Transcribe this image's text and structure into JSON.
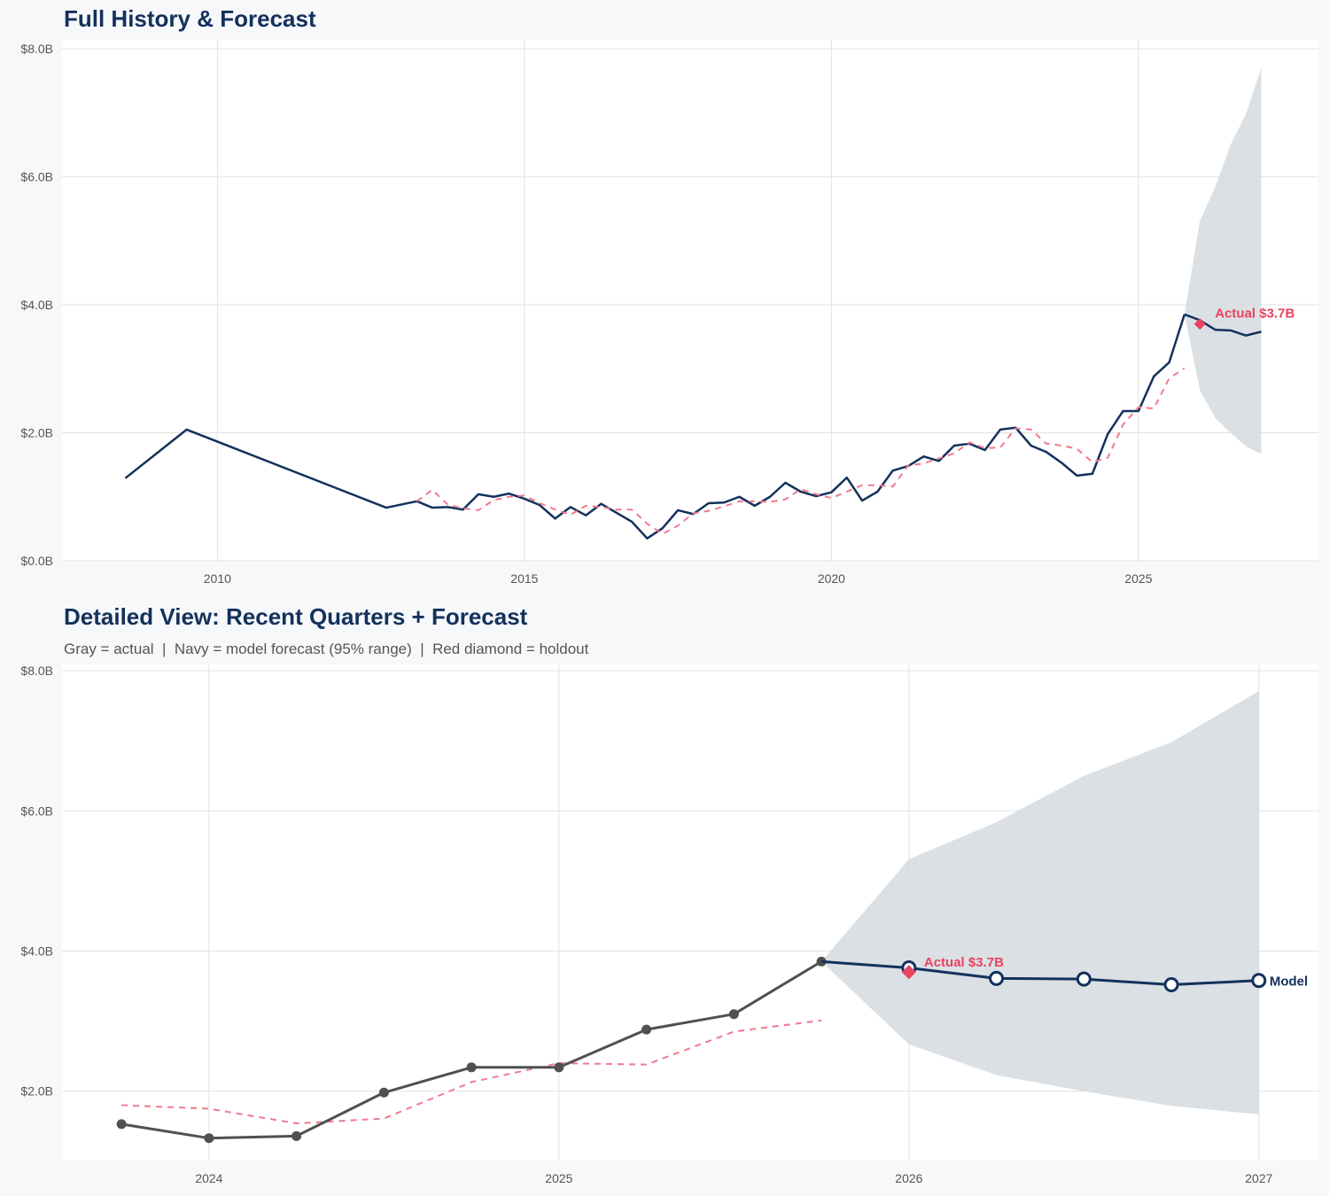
{
  "colors": {
    "navy": "#13315c",
    "actual_gray": "#505050",
    "fitted_red": "#f07a8e",
    "holdout_red": "#e8435f",
    "band": "#d5dae1",
    "grid": "#e2e2e2"
  },
  "chart_data": [
    {
      "type": "line",
      "title": "Full History & Forecast",
      "xlim": [
        2007.47,
        2027.93
      ],
      "ylim": [
        0,
        8.14
      ],
      "xticks": [
        2010,
        2015,
        2020,
        2025
      ],
      "xtick_labels": [
        "2010",
        "2015",
        "2020",
        "2025"
      ],
      "yticks": [
        0,
        2,
        4,
        6,
        8
      ],
      "ytick_labels": [
        "$0.0B",
        "$2.0B",
        "$4.0B",
        "$6.0B",
        "$8.0B"
      ],
      "grid": true,
      "series": [
        {
          "role": "actual",
          "style": "solid-navy",
          "x": [
            2008.5,
            2009.5,
            2012.75,
            2013.25,
            2013.5,
            2013.75,
            2014.0,
            2014.25,
            2014.5,
            2014.75,
            2015.0,
            2015.25,
            2015.5,
            2015.75,
            2016.0,
            2016.25,
            2016.5,
            2016.75,
            2017.0,
            2017.25,
            2017.5,
            2017.75,
            2018.0,
            2018.25,
            2018.5,
            2018.75,
            2019.0,
            2019.25,
            2019.5,
            2019.75,
            2020.0,
            2020.25,
            2020.5,
            2020.75,
            2021.0,
            2021.25,
            2021.5,
            2021.75,
            2022.0,
            2022.25,
            2022.5,
            2022.75,
            2023.0,
            2023.25,
            2023.5,
            2023.75,
            2024.0,
            2024.25,
            2024.5,
            2024.75,
            2025.0,
            2025.25,
            2025.5,
            2025.75
          ],
          "y": [
            1.29,
            2.05,
            0.83,
            0.93,
            0.83,
            0.84,
            0.8,
            1.04,
            1.0,
            1.05,
            0.97,
            0.87,
            0.66,
            0.84,
            0.71,
            0.89,
            0.75,
            0.61,
            0.35,
            0.51,
            0.79,
            0.73,
            0.9,
            0.91,
            1.0,
            0.86,
            1.0,
            1.22,
            1.08,
            1.01,
            1.07,
            1.3,
            0.94,
            1.08,
            1.41,
            1.48,
            1.63,
            1.56,
            1.8,
            1.83,
            1.73,
            2.05,
            2.08,
            1.8,
            1.7,
            1.53,
            1.33,
            1.36,
            1.98,
            2.34,
            2.34,
            2.88,
            3.1,
            3.85
          ]
        },
        {
          "role": "fitted",
          "style": "dashed-red",
          "x": [
            2013.25,
            2013.5,
            2013.75,
            2014.0,
            2014.25,
            2014.5,
            2014.75,
            2015.0,
            2015.25,
            2015.5,
            2015.75,
            2016.0,
            2016.25,
            2016.5,
            2016.75,
            2017.0,
            2017.25,
            2017.5,
            2017.75,
            2018.0,
            2018.25,
            2018.5,
            2018.75,
            2019.0,
            2019.25,
            2019.5,
            2019.75,
            2020.0,
            2020.25,
            2020.5,
            2020.75,
            2021.0,
            2021.25,
            2021.5,
            2021.75,
            2022.0,
            2022.25,
            2022.5,
            2022.75,
            2023.0,
            2023.25,
            2023.5,
            2023.75,
            2024.0,
            2024.25,
            2024.5,
            2024.75,
            2025.0,
            2025.25,
            2025.5,
            2025.75
          ],
          "y": [
            0.93,
            1.11,
            0.88,
            0.82,
            0.79,
            0.95,
            1.0,
            1.02,
            0.9,
            0.8,
            0.72,
            0.86,
            0.84,
            0.8,
            0.8,
            0.58,
            0.42,
            0.55,
            0.74,
            0.78,
            0.85,
            0.93,
            0.93,
            0.92,
            0.96,
            1.12,
            1.04,
            0.98,
            1.08,
            1.18,
            1.18,
            1.16,
            1.49,
            1.52,
            1.6,
            1.68,
            1.85,
            1.76,
            1.77,
            2.07,
            2.05,
            1.83,
            1.8,
            1.75,
            1.54,
            1.61,
            2.13,
            2.4,
            2.38,
            2.85,
            3.01
          ]
        },
        {
          "role": "forecast",
          "style": "solid-navy",
          "x": [
            2025.75,
            2026.0,
            2026.25,
            2026.5,
            2026.75,
            2027.0
          ],
          "y": [
            3.85,
            3.76,
            3.61,
            3.6,
            3.52,
            3.58
          ],
          "upper": [
            3.85,
            5.31,
            5.84,
            6.5,
            6.98,
            7.71
          ],
          "lower": [
            3.85,
            2.67,
            2.23,
            2.0,
            1.79,
            1.67
          ]
        }
      ],
      "holdout": {
        "x": 2026.0,
        "y": 3.7,
        "label": "Actual $3.7B"
      }
    },
    {
      "type": "line",
      "title": "Detailed View: Recent Quarters + Forecast",
      "subtitle": "Gray = actual  |  Navy = model forecast (95% range)  |  Red diamond = holdout",
      "xlim": [
        2023.58,
        2027.17
      ],
      "ylim": [
        1.01,
        8.09
      ],
      "xticks": [
        2024,
        2025,
        2026,
        2027
      ],
      "xtick_labels": [
        "2024",
        "2025",
        "2026",
        "2027"
      ],
      "yticks": [
        2,
        4,
        6,
        8
      ],
      "ytick_labels": [
        "$2.0B",
        "$4.0B",
        "$6.0B",
        "$8.0B"
      ],
      "grid": true,
      "series": [
        {
          "role": "fitted",
          "style": "dashed-red",
          "x": [
            2023.75,
            2024.0,
            2024.25,
            2024.5,
            2024.75,
            2025.0,
            2025.25,
            2025.5,
            2025.75
          ],
          "y": [
            1.8,
            1.75,
            1.54,
            1.61,
            2.13,
            2.4,
            2.38,
            2.85,
            3.01
          ]
        },
        {
          "role": "actual",
          "style": "solid-gray-markers",
          "x": [
            2023.75,
            2024.0,
            2024.25,
            2024.5,
            2024.75,
            2025.0,
            2025.25,
            2025.5,
            2025.75
          ],
          "y": [
            1.53,
            1.33,
            1.36,
            1.98,
            2.34,
            2.34,
            2.88,
            3.1,
            3.85
          ]
        },
        {
          "role": "forecast",
          "style": "solid-navy-open-markers",
          "end_label": "Model",
          "x": [
            2025.75,
            2026.0,
            2026.25,
            2026.5,
            2026.75,
            2027.0
          ],
          "y": [
            3.85,
            3.76,
            3.61,
            3.6,
            3.52,
            3.58
          ],
          "upper": [
            3.85,
            5.31,
            5.84,
            6.5,
            6.98,
            7.71
          ],
          "lower": [
            3.85,
            2.67,
            2.23,
            2.0,
            1.79,
            1.67
          ]
        }
      ],
      "holdout": {
        "x": 2026.0,
        "y": 3.7,
        "label": "Actual $3.7B"
      }
    }
  ]
}
